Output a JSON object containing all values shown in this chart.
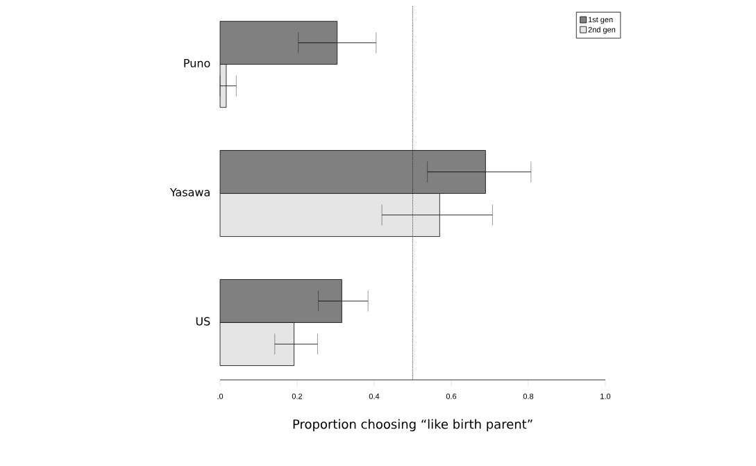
{
  "chart_data": {
    "type": "bar",
    "orientation": "horizontal",
    "categories": [
      "Puno",
      "Yasawa",
      "US"
    ],
    "series": [
      {
        "name": "1st gen",
        "color": "#808080",
        "values": [
          0.304,
          0.689,
          0.316
        ],
        "errors": [
          [
            0.203,
            0.405
          ],
          [
            0.538,
            0.807
          ],
          [
            0.255,
            0.384
          ]
        ]
      },
      {
        "name": "2nd gen",
        "color": "#e5e5e5",
        "values": [
          0.016,
          0.57,
          0.192
        ],
        "errors": [
          [
            0.0,
            0.042
          ],
          [
            0.42,
            0.707
          ],
          [
            0.142,
            0.253
          ]
        ]
      }
    ],
    "xlabel": "Proportion choosing “like birth parent”",
    "xlim": [
      0,
      1
    ],
    "xticks": [
      {
        "value": 0,
        "label": ".0"
      },
      0.2,
      0.4,
      0.6,
      0.8,
      {
        "value": 1,
        "label": "1.0"
      }
    ],
    "ref_lines": [
      {
        "axis": "x",
        "value": 0.5,
        "line_style": "dotted"
      }
    ],
    "legend": "top right",
    "grid": false
  }
}
